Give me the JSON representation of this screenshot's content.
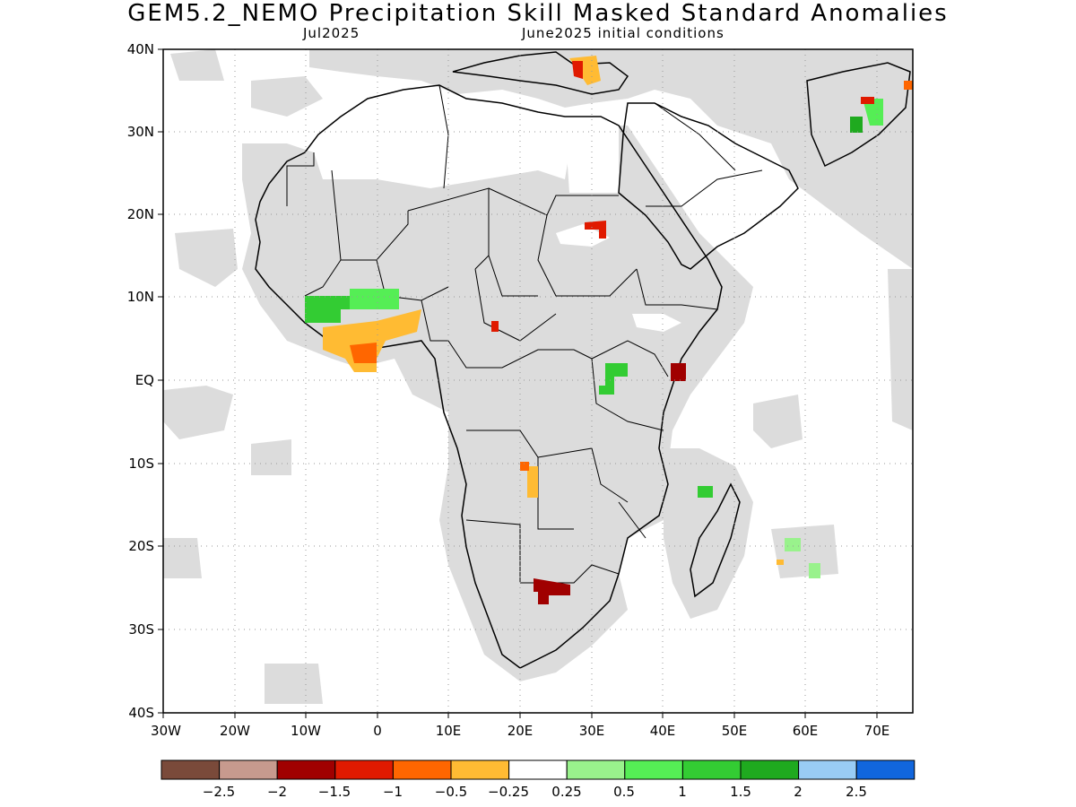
{
  "title": "GEM5.2_NEMO Precipitation Skill Masked Standard Anomalies",
  "subtitle_left": "Jul2025",
  "subtitle_right": "June2025 initial conditions",
  "lat_labels": [
    "40N",
    "30N",
    "20N",
    "10N",
    "EQ",
    "10S",
    "20S",
    "30S",
    "40S"
  ],
  "lon_labels": [
    "30W",
    "20W",
    "10W",
    "0",
    "10E",
    "20E",
    "30E",
    "40E",
    "50E",
    "60E",
    "70E"
  ],
  "colorbar": {
    "colors": [
      "#7a4a3a",
      "#c79a8e",
      "#a00000",
      "#e01a00",
      "#ff6600",
      "#ffbb33",
      "#ffffff",
      "#99f28c",
      "#55ee55",
      "#33cc33",
      "#1faa1f",
      "#99ccf5",
      "#1166dd"
    ],
    "labels": [
      "−2.5",
      "−2",
      "−1.5",
      "−1",
      "−0.5",
      "−0.25",
      "0.25",
      "0.5",
      "1",
      "1.5",
      "2",
      "2.5"
    ]
  },
  "colors": {
    "land_mask": "#dcdcdc",
    "ocean": "#ffffff",
    "coast": "#000000"
  }
}
